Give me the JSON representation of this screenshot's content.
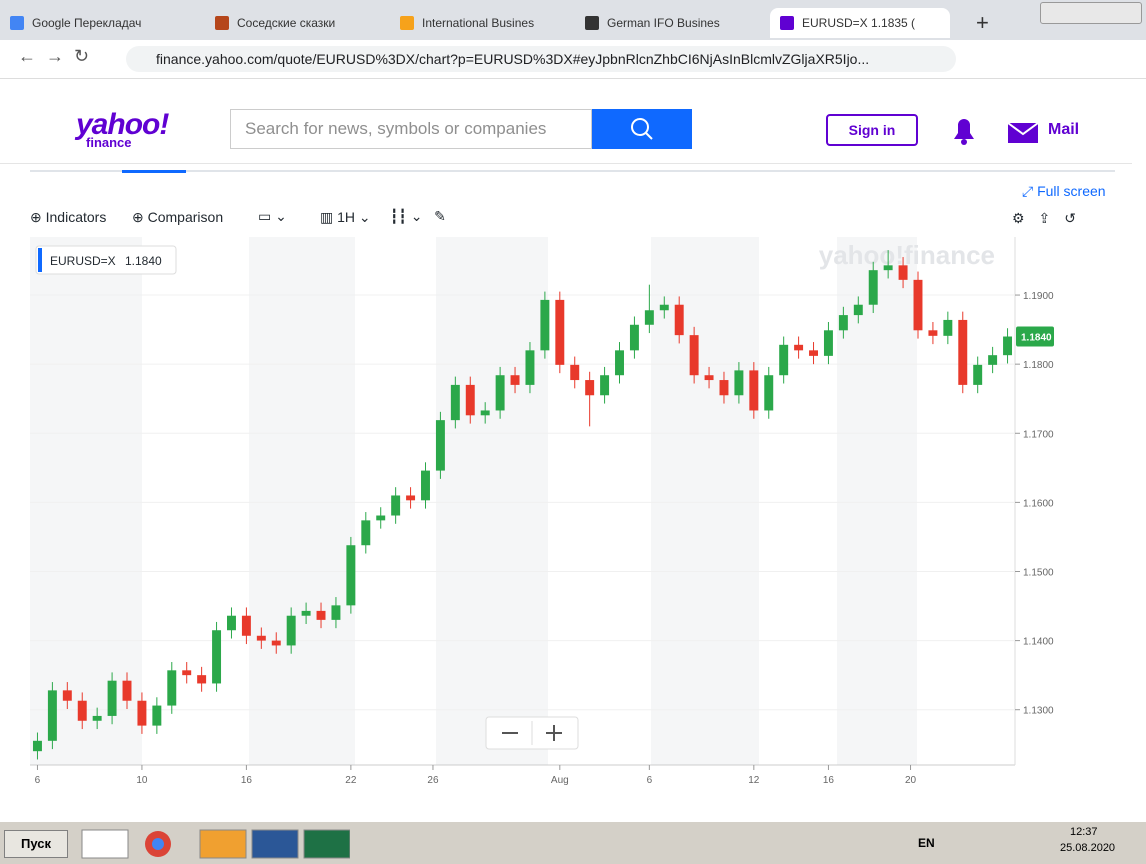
{
  "browser": {
    "tabs": [
      "Google Перекладач",
      "Соседские сказки",
      "International Busines",
      "German IFO Busines",
      "EURUSD=X 1.1835 ("
    ],
    "url": "finance.yahoo.com/quote/EURUSD%3DX/chart?p=EURUSD%3DX#eyJpbnRlcnZhbCI6NjAsInBlcmlvZGljaXR5Ijo..."
  },
  "header": {
    "logo": "yahoo!",
    "logo_sub": "finance",
    "search_placeholder": "Search for news, symbols or companies",
    "sign_in": "Sign in",
    "mail": "Mail"
  },
  "toolbar": {
    "full_screen": "Full screen",
    "indicators": "Indicators",
    "comparison": "Comparison",
    "interval": "1H"
  },
  "taskbar": {
    "start": "Пуск",
    "lang": "EN",
    "time": "12:37",
    "date": "25.08.2020"
  },
  "chart_data": {
    "type": "candlestick",
    "symbol": "EURUSD=X",
    "last_price": {
      "value": 1.184,
      "label": "1.1840"
    },
    "watermark": "yahoo!finance",
    "up_color": "#2ba84a",
    "down_color": "#e8392b",
    "grid": true,
    "ylim": [
      1.122,
      1.1984
    ],
    "yticks": [
      {
        "value": 1.19,
        "label": "1.1900"
      },
      {
        "value": 1.18,
        "label": "1.1800"
      },
      {
        "value": 1.17,
        "label": "1.1700"
      },
      {
        "value": 1.16,
        "label": "1.1600"
      },
      {
        "value": 1.15,
        "label": "1.1500"
      },
      {
        "value": 1.14,
        "label": "1.1400"
      },
      {
        "value": 1.13,
        "label": "1.1300"
      }
    ],
    "xlim": [
      0,
      66
    ],
    "xticks": [
      {
        "value": 0,
        "label": "6"
      },
      {
        "value": 7,
        "label": "10"
      },
      {
        "value": 14,
        "label": "16"
      },
      {
        "value": 21,
        "label": "22"
      },
      {
        "value": 26.5,
        "label": "26"
      },
      {
        "value": 35,
        "label": "Aug"
      },
      {
        "value": 41,
        "label": "6"
      },
      {
        "value": 48,
        "label": "12"
      },
      {
        "value": 53,
        "label": "16"
      },
      {
        "value": 58.5,
        "label": "20"
      }
    ],
    "open": [
      1.124,
      1.1255,
      1.1328,
      1.1313,
      1.1284,
      1.1291,
      1.1342,
      1.1313,
      1.1277,
      1.1306,
      1.1357,
      1.135,
      1.1338,
      1.1415,
      1.1436,
      1.1407,
      1.14,
      1.1393,
      1.1436,
      1.1443,
      1.143,
      1.1451,
      1.1538,
      1.1574,
      1.1581,
      1.161,
      1.1603,
      1.1646,
      1.1719,
      1.177,
      1.1726,
      1.1733,
      1.1784,
      1.177,
      1.182,
      1.1893,
      1.1799,
      1.1777,
      1.1755,
      1.1784,
      1.182,
      1.1857,
      1.1878,
      1.1886,
      1.1842,
      1.1784,
      1.1777,
      1.1755,
      1.1791,
      1.1733,
      1.1784,
      1.1828,
      1.182,
      1.1812,
      1.1849,
      1.1871,
      1.1886,
      1.1936,
      1.1943,
      1.1922,
      1.1849,
      1.1841,
      1.1864,
      1.177,
      1.1799,
      1.1813
    ],
    "high": [
      1.1267,
      1.134,
      1.134,
      1.1325,
      1.1303,
      1.1354,
      1.1354,
      1.1325,
      1.1318,
      1.1369,
      1.1369,
      1.1362,
      1.1427,
      1.1448,
      1.1448,
      1.1419,
      1.1412,
      1.1448,
      1.1455,
      1.1455,
      1.1463,
      1.155,
      1.1586,
      1.1593,
      1.1622,
      1.1622,
      1.1658,
      1.1731,
      1.1782,
      1.1782,
      1.1745,
      1.1796,
      1.1796,
      1.1832,
      1.1905,
      1.1905,
      1.1811,
      1.1789,
      1.1796,
      1.1832,
      1.1869,
      1.1915,
      1.1898,
      1.1898,
      1.1854,
      1.1796,
      1.1789,
      1.1803,
      1.1803,
      1.1796,
      1.184,
      1.184,
      1.1832,
      1.1861,
      1.1883,
      1.1898,
      1.1948,
      1.1965,
      1.1955,
      1.1934,
      1.1861,
      1.1876,
      1.1876,
      1.1811,
      1.1825,
      1.1852
    ],
    "low": [
      1.1228,
      1.1243,
      1.1301,
      1.1272,
      1.1272,
      1.1279,
      1.1301,
      1.1265,
      1.1265,
      1.1294,
      1.1338,
      1.1326,
      1.1326,
      1.1403,
      1.1395,
      1.1388,
      1.1381,
      1.1381,
      1.1424,
      1.1418,
      1.1418,
      1.1439,
      1.1526,
      1.1562,
      1.1569,
      1.1591,
      1.1591,
      1.1634,
      1.1707,
      1.1714,
      1.1714,
      1.1721,
      1.1758,
      1.1758,
      1.1808,
      1.1787,
      1.1765,
      1.171,
      1.1743,
      1.1772,
      1.1808,
      1.1845,
      1.1866,
      1.183,
      1.1772,
      1.1765,
      1.1743,
      1.1743,
      1.1721,
      1.1721,
      1.1772,
      1.1808,
      1.18,
      1.18,
      1.1837,
      1.1859,
      1.1874,
      1.1924,
      1.191,
      1.1837,
      1.1829,
      1.1829,
      1.1758,
      1.1758,
      1.1787,
      1.1801
    ],
    "close": [
      1.1255,
      1.1328,
      1.1313,
      1.1284,
      1.1291,
      1.1342,
      1.1313,
      1.1277,
      1.1306,
      1.1357,
      1.135,
      1.1338,
      1.1415,
      1.1436,
      1.1407,
      1.14,
      1.1393,
      1.1436,
      1.1443,
      1.143,
      1.1451,
      1.1538,
      1.1574,
      1.1581,
      1.161,
      1.1603,
      1.1646,
      1.1719,
      1.177,
      1.1726,
      1.1733,
      1.1784,
      1.177,
      1.182,
      1.1893,
      1.1799,
      1.1777,
      1.1755,
      1.1784,
      1.182,
      1.1857,
      1.1878,
      1.1886,
      1.1842,
      1.1784,
      1.1777,
      1.1755,
      1.1791,
      1.1733,
      1.1784,
      1.1828,
      1.182,
      1.1812,
      1.1849,
      1.1871,
      1.1886,
      1.1936,
      1.1943,
      1.1922,
      1.1849,
      1.1841,
      1.1864,
      1.177,
      1.1799,
      1.1813,
      1.184
    ]
  }
}
